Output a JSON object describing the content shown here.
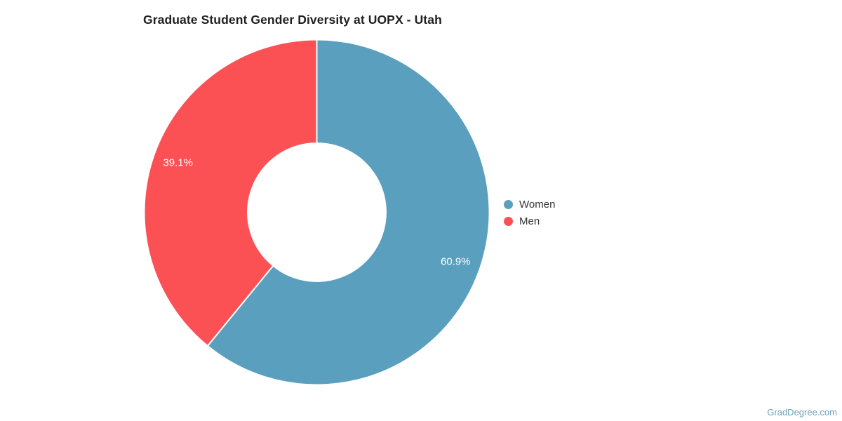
{
  "chart_data": {
    "type": "pie",
    "subtype": "donut",
    "title": "Graduate Student Gender Diversity at UOPX - Utah",
    "categories": [
      "Women",
      "Men"
    ],
    "values": [
      60.9,
      39.1
    ],
    "value_labels": [
      "60.9%",
      "39.1%"
    ],
    "colors": [
      "#5A9FBE",
      "#FC5154"
    ],
    "slice_label_color": "#FFFFFF",
    "slice_border_color": "#FFFFFF",
    "start_angle_deg": 0,
    "direction": "clockwise",
    "donut_hole_ratio": 0.4,
    "legend_position": "right-center",
    "legend": [
      {
        "label": "Women",
        "color": "#5A9FBE"
      },
      {
        "label": "Men",
        "color": "#FC5154"
      }
    ]
  },
  "watermark": {
    "text": "GradDegree.com",
    "color": "#6CA3BA"
  }
}
